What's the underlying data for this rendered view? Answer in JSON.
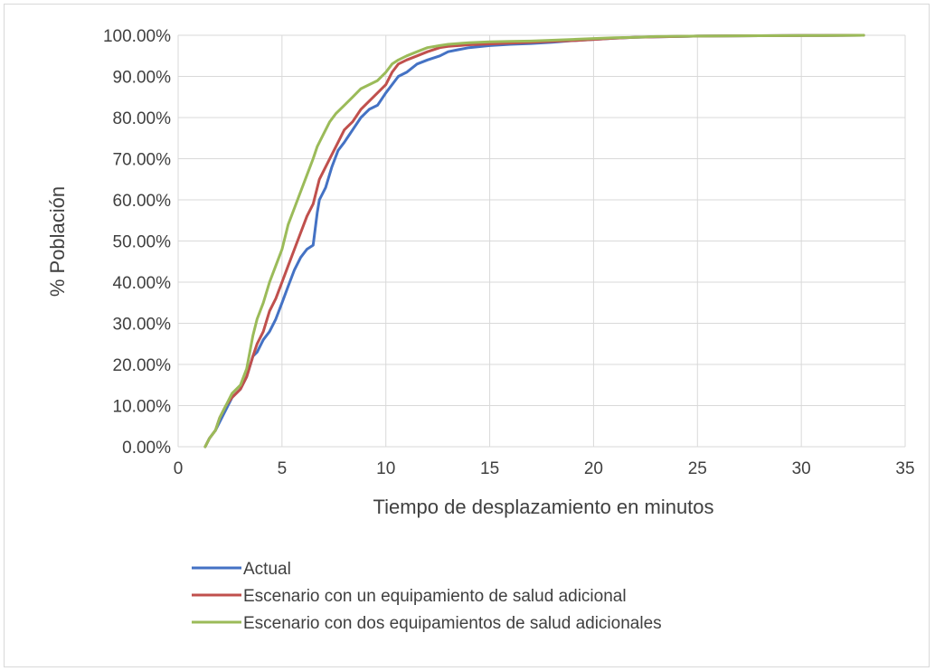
{
  "chart_data": {
    "type": "line",
    "title": "",
    "xlabel": "Tiempo de desplazamiento en minutos",
    "ylabel": "% Población",
    "xlim": [
      0,
      35
    ],
    "ylim": [
      0,
      100
    ],
    "x_ticks": [
      "0",
      "5",
      "10",
      "15",
      "20",
      "25",
      "30",
      "35"
    ],
    "y_ticks": [
      "0.00%",
      "10.00%",
      "20.00%",
      "30.00%",
      "40.00%",
      "50.00%",
      "60.00%",
      "70.00%",
      "80.00%",
      "90.00%",
      "100.00%"
    ],
    "grid": true,
    "legend_position": "bottom",
    "series": [
      {
        "name": "Actual",
        "color": "#4472c4",
        "x": [
          1.3,
          1.5,
          1.8,
          2.0,
          2.3,
          2.6,
          3.0,
          3.3,
          3.6,
          3.8,
          4.1,
          4.4,
          4.7,
          5.0,
          5.3,
          5.6,
          5.9,
          6.2,
          6.5,
          6.7,
          6.8,
          7.1,
          7.4,
          7.7,
          8.0,
          8.4,
          8.8,
          9.2,
          9.6,
          10.0,
          10.3,
          10.6,
          11.0,
          11.5,
          12.0,
          12.6,
          13.0,
          13.5,
          14.0,
          15.0,
          16.0,
          17.0,
          18.0,
          19.0,
          20.0,
          21.0,
          22.0,
          23.0,
          25.0,
          28.0,
          31.0,
          33.0
        ],
        "values": [
          0,
          2,
          4,
          6,
          9,
          12,
          14,
          17,
          22,
          23,
          26,
          28,
          31,
          35,
          39,
          43,
          46,
          48,
          49,
          57,
          60,
          63,
          68,
          72,
          74,
          77,
          80,
          82,
          83,
          86,
          88,
          90,
          91,
          93,
          94,
          95,
          96,
          96.5,
          97,
          97.5,
          97.8,
          98,
          98.3,
          98.7,
          99,
          99.3,
          99.5,
          99.6,
          99.8,
          99.9,
          99.95,
          100
        ]
      },
      {
        "name": "Escenario con un equipamiento de salud adicional",
        "color": "#c0504d",
        "x": [
          1.3,
          1.5,
          1.8,
          2.0,
          2.3,
          2.6,
          3.0,
          3.3,
          3.6,
          3.8,
          4.1,
          4.4,
          4.7,
          5.0,
          5.3,
          5.6,
          5.9,
          6.2,
          6.5,
          6.8,
          7.1,
          7.4,
          7.7,
          8.0,
          8.4,
          8.8,
          9.2,
          9.6,
          10.0,
          10.3,
          10.6,
          11.0,
          11.5,
          12.0,
          12.6,
          13.0,
          13.5,
          14.0,
          15.0,
          16.0,
          17.0,
          18.0,
          19.0,
          20.0,
          21.0,
          22.0,
          23.0,
          25.0,
          28.0,
          31.0,
          33.0
        ],
        "values": [
          0,
          2,
          4,
          7,
          10,
          12,
          14,
          17,
          22,
          25,
          28,
          33,
          36,
          40,
          44,
          48,
          52,
          56,
          59,
          65,
          68,
          71,
          74,
          77,
          79,
          82,
          84,
          86,
          88,
          91,
          93,
          94,
          95,
          96,
          97,
          97.3,
          97.5,
          97.7,
          97.9,
          98.1,
          98.3,
          98.5,
          98.7,
          99,
          99.3,
          99.5,
          99.6,
          99.8,
          99.9,
          99.95,
          100
        ]
      },
      {
        "name": "Escenario con dos equipamientos de salud adicionales",
        "color": "#9bbb59",
        "x": [
          1.3,
          1.5,
          1.8,
          2.0,
          2.3,
          2.6,
          3.0,
          3.3,
          3.6,
          3.8,
          4.1,
          4.4,
          4.7,
          5.0,
          5.3,
          5.6,
          5.9,
          6.2,
          6.5,
          6.7,
          7.0,
          7.3,
          7.6,
          8.0,
          8.4,
          8.8,
          9.2,
          9.6,
          10.0,
          10.3,
          10.6,
          11.0,
          11.5,
          12.0,
          12.6,
          13.0,
          13.5,
          14.0,
          15.0,
          16.0,
          17.0,
          18.0,
          19.0,
          20.0,
          21.0,
          22.0,
          23.0,
          25.0,
          28.0,
          31.0,
          33.0
        ],
        "values": [
          0,
          2,
          4,
          7,
          10,
          13,
          15,
          19,
          27,
          31,
          35,
          40,
          44,
          48,
          54,
          58,
          62,
          66,
          70,
          73,
          76,
          79,
          81,
          83,
          85,
          87,
          88,
          89,
          91,
          93,
          94,
          95,
          96,
          97,
          97.5,
          97.8,
          98,
          98.2,
          98.4,
          98.5,
          98.6,
          98.8,
          99,
          99.2,
          99.4,
          99.5,
          99.7,
          99.8,
          99.9,
          99.95,
          100
        ]
      }
    ]
  }
}
